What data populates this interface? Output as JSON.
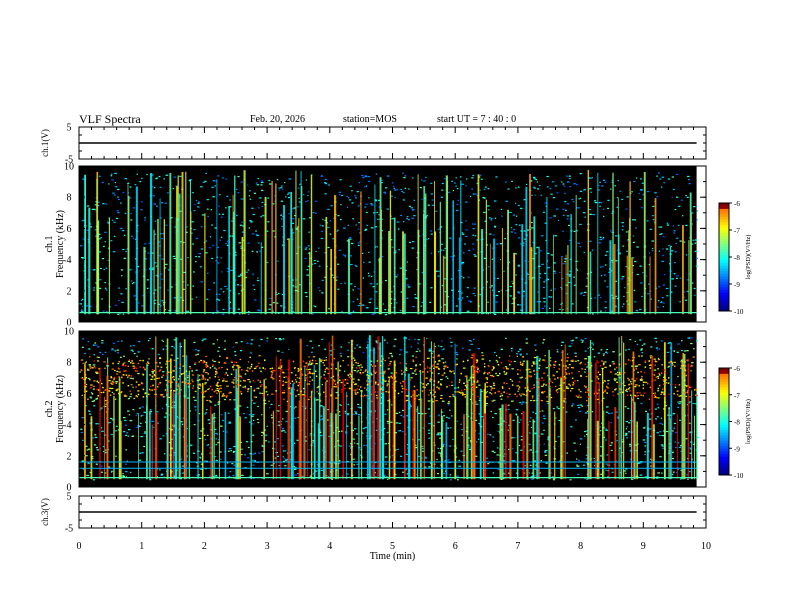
{
  "header": {
    "title": "VLF Spectra",
    "date": "Feb. 20, 2026",
    "station": "station=MOS",
    "start": "start  UT =   7 : 40 : 0"
  },
  "chart_data": [
    {
      "type": "line",
      "panel": "voltage-top",
      "ylabel": "ch.1(V)",
      "ylim": [
        -5,
        5
      ],
      "yticks": [
        "5",
        "-5"
      ],
      "x": [
        0,
        9.85
      ],
      "values": [
        0,
        0
      ]
    },
    {
      "type": "heatmap",
      "panel": "spectrogram-ch1",
      "ylabel": "ch.1\nFrequency (kHz)",
      "ylim": [
        0,
        10
      ],
      "yticks": [
        "0",
        "2",
        "4",
        "6",
        "8",
        "10"
      ],
      "colorbar": {
        "label": "log(PSD)(V²/Hz)",
        "range": [
          -10,
          -6
        ],
        "ticks": [
          "-6",
          "-7",
          "-8",
          "-9",
          "-10"
        ]
      },
      "band_kHz": [
        0.5,
        10
      ]
    },
    {
      "type": "heatmap",
      "panel": "spectrogram-ch2",
      "ylabel": "ch.2\nFrequency (kHz)",
      "ylim": [
        0,
        10
      ],
      "yticks": [
        "0",
        "2",
        "4",
        "6",
        "8",
        "10"
      ],
      "colorbar": {
        "label": "log(PSD)(V²/Hz)",
        "range": [
          -10,
          -6
        ],
        "ticks": [
          "-6",
          "-7",
          "-8",
          "-9",
          "-10"
        ]
      },
      "band_kHz": [
        0.5,
        10
      ]
    },
    {
      "type": "line",
      "panel": "voltage-bottom",
      "ylabel": "ch.3(V)",
      "ylim": [
        -5,
        5
      ],
      "yticks": [
        "5",
        "-5"
      ],
      "x": [
        0,
        9.85
      ],
      "values": [
        0,
        0
      ]
    }
  ],
  "xaxis": {
    "label": "Time (min)",
    "range": [
      0,
      10
    ],
    "ticks": [
      "0",
      "1",
      "2",
      "3",
      "4",
      "5",
      "6",
      "7",
      "8",
      "9",
      "10"
    ]
  },
  "colors": {
    "background": "#ffffff",
    "axis": "#000000",
    "spectrogram_bg": "#000000"
  }
}
